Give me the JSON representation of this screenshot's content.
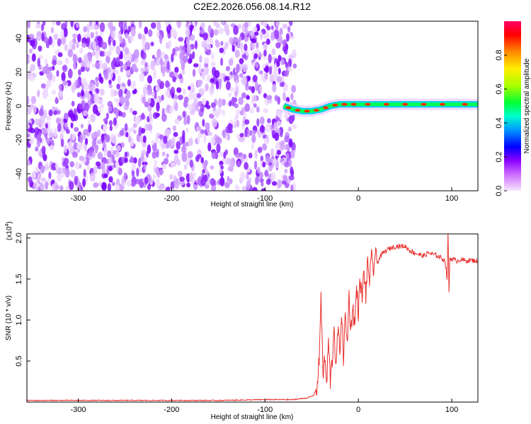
{
  "page": {
    "title": "C2E2.2026.056.08.14.R12"
  },
  "chart_data": [
    {
      "type": "heatmap",
      "xlabel": "Height of straight line (km)",
      "ylabel": "Frequency (Hz)",
      "xlim": [
        -355,
        128
      ],
      "ylim": [
        -50,
        50
      ],
      "xticks": [
        -300,
        -200,
        -100,
        0,
        100
      ],
      "yticks": [
        -40,
        -20,
        0,
        20,
        40
      ],
      "noise_region_x": [
        -355,
        -68
      ],
      "signal_track": {
        "x": [
          -80,
          -70,
          -60,
          -50,
          -40,
          -30,
          -20,
          -10,
          0,
          20,
          40,
          60,
          80,
          100,
          128
        ],
        "y": [
          0,
          -2,
          -3,
          -3,
          -2,
          0,
          1,
          1,
          1,
          1,
          1,
          1,
          1,
          1,
          1
        ]
      },
      "grid": false,
      "colorbar": {
        "label": "Normalized spectral amplitude",
        "range": [
          0,
          1
        ],
        "ticks": [
          "0.0",
          "0.2",
          "0.4",
          "0.6",
          "0.8"
        ],
        "colormap": [
          "#f5e6ff",
          "#9900ff",
          "#0000ff",
          "#00ccff",
          "#00ff66",
          "#aaff00",
          "#ffee00",
          "#ff9900",
          "#ff0000",
          "#ff0066"
        ]
      }
    },
    {
      "type": "line",
      "xlabel": "Height of straight line (km)",
      "ylabel": "SNR (10 * v/v)",
      "scale_label": "(x10",
      "scale_exp": "4",
      "scale_close": ")",
      "xlim": [
        -355,
        128
      ],
      "ylim": [
        0,
        2.05
      ],
      "xticks": [
        -300,
        -200,
        -100,
        0,
        100
      ],
      "yticks": [
        "0.5",
        "1.0",
        "1.5",
        "2.0"
      ],
      "grid": false,
      "series": [
        {
          "color": "#e8302e",
          "x": [
            -355,
            -300,
            -250,
            -200,
            -150,
            -100,
            -70,
            -55,
            -48,
            -44,
            -42,
            -40,
            -38,
            -36,
            -34,
            -32,
            -30,
            -28,
            -26,
            -24,
            -22,
            -20,
            -18,
            -16,
            -14,
            -12,
            -10,
            -8,
            -6,
            -4,
            -2,
            0,
            2,
            4,
            6,
            8,
            10,
            12,
            14,
            16,
            18,
            20,
            25,
            30,
            35,
            40,
            45,
            50,
            55,
            60,
            65,
            70,
            75,
            80,
            85,
            90,
            93,
            95,
            96,
            97,
            98,
            100,
            105,
            110,
            115,
            120,
            128
          ],
          "y": [
            0.02,
            0.02,
            0.02,
            0.02,
            0.02,
            0.03,
            0.03,
            0.05,
            0.08,
            0.2,
            0.5,
            1.35,
            0.3,
            0.55,
            0.2,
            0.75,
            0.25,
            0.5,
            0.95,
            0.35,
            0.9,
            0.6,
            1.1,
            0.55,
            1.05,
            0.7,
            1.3,
            0.85,
            1.2,
            0.9,
            1.4,
            1.1,
            1.5,
            1.25,
            1.6,
            1.3,
            1.7,
            1.5,
            1.75,
            1.6,
            1.8,
            1.7,
            1.8,
            1.85,
            1.88,
            1.9,
            1.9,
            1.9,
            1.85,
            1.82,
            1.8,
            1.78,
            1.82,
            1.8,
            1.78,
            1.75,
            1.72,
            1.5,
            2.05,
            1.35,
            1.75,
            1.75,
            1.72,
            1.74,
            1.72,
            1.73,
            1.72
          ]
        }
      ]
    }
  ]
}
